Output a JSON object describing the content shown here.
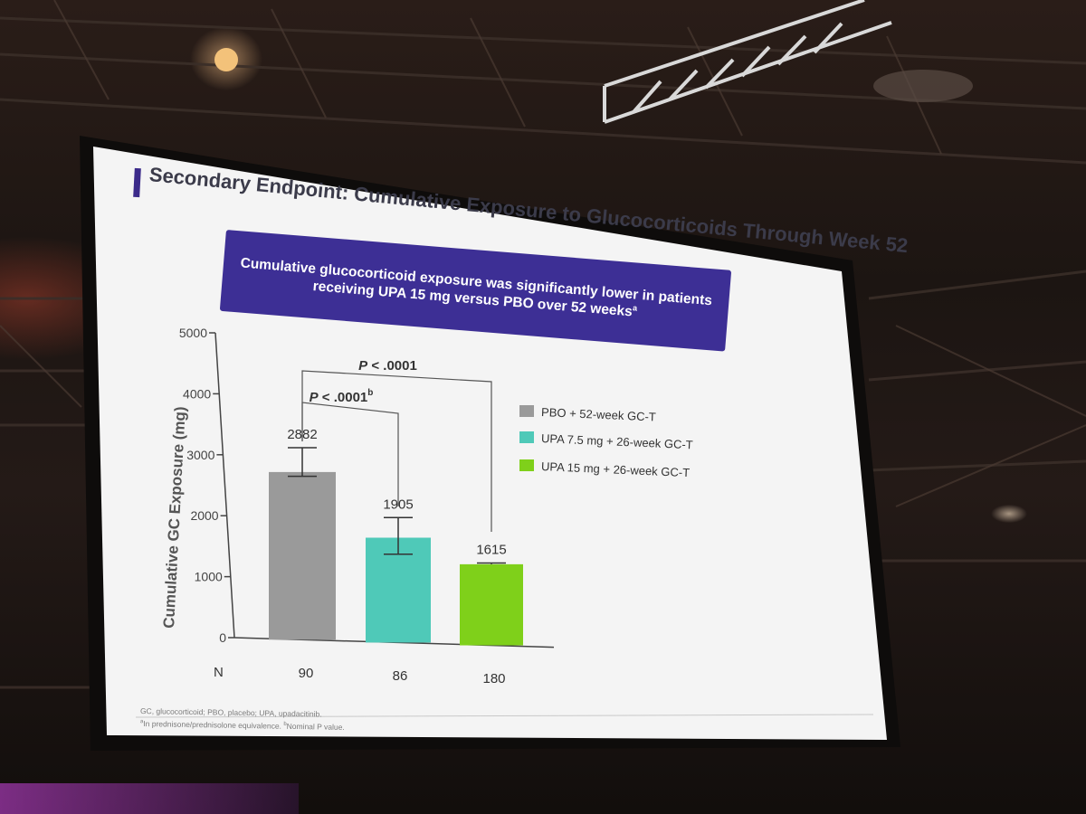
{
  "slide": {
    "title": "Secondary Endpoint: Cumulative Exposure to Glucocorticoids Through Week 52",
    "banner_line1": "Cumulative glucocorticoid exposure was significantly lower in patients",
    "banner_line2": "receiving UPA 15 mg versus PBO over 52 weeks",
    "banner_sup": "a",
    "footnote_line1": "GC, glucocorticoid; PBO, placebo; UPA, upadacitinib.",
    "footnote_line2_sup_a": "a",
    "footnote_line2_a": "In prednisone/prednisolone equivalence. ",
    "footnote_line2_sup_b": "b",
    "footnote_line2_b": "Nominal P value."
  },
  "colors": {
    "banner": "#3d2f95",
    "pbo": "#9a9a9a",
    "upa75": "#4fc9b8",
    "upa15": "#7fd01a"
  },
  "chart_data": {
    "type": "bar",
    "title": "",
    "ylabel": "Cumulative GC Exposure (mg)",
    "xlabel": "",
    "ylim": [
      0,
      5000
    ],
    "yticks": [
      0,
      1000,
      2000,
      3000,
      4000,
      5000
    ],
    "n_label": "N",
    "categories": [
      "PBO + 52-week GC-T",
      "UPA 7.5 mg + 26-week GC-T",
      "UPA 15 mg + 26-week GC-T"
    ],
    "values": [
      2882,
      1905,
      1615
    ],
    "bar_heights": [
      2750,
      1720,
      1330
    ],
    "error_upper": [
      3150,
      2050,
      1350
    ],
    "error_lower": [
      2680,
      1450,
      1330
    ],
    "n_values": [
      "90",
      "86",
      "180"
    ],
    "series_colors": [
      "#9a9a9a",
      "#4fc9b8",
      "#7fd01a"
    ],
    "legend_position": "right",
    "comparisons": [
      {
        "label": "P < .0001",
        "sup": "",
        "from": 0,
        "to": 2
      },
      {
        "label": "P < .0001",
        "sup": "b",
        "from": 0,
        "to": 1
      }
    ]
  }
}
